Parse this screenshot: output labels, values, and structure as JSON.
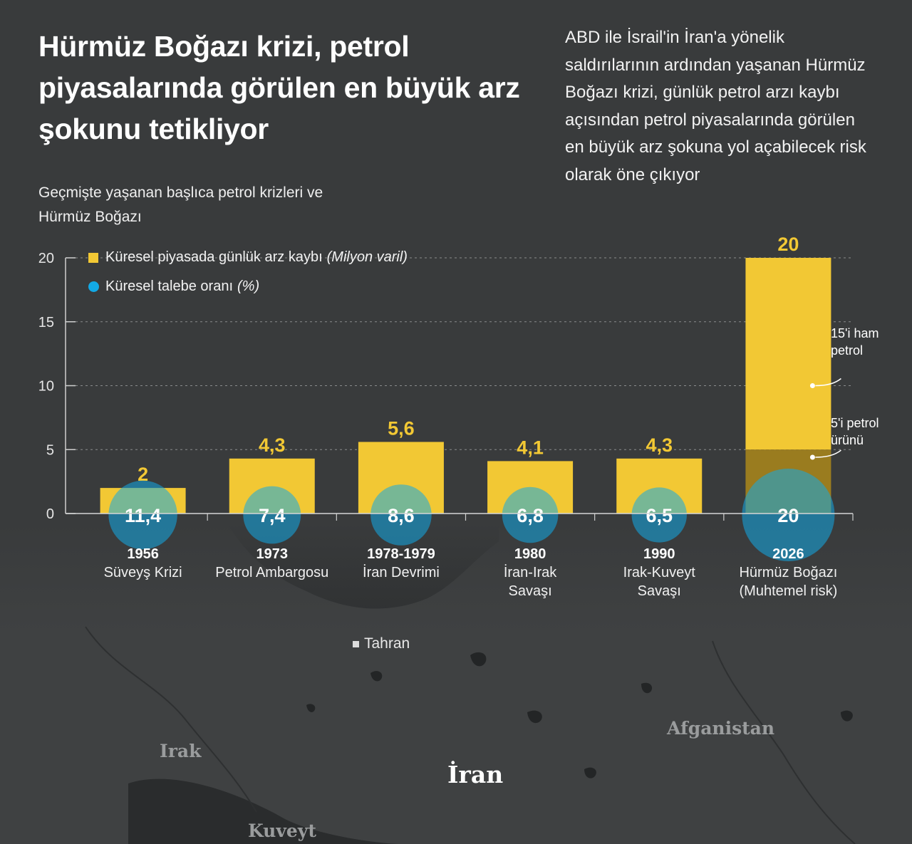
{
  "header": {
    "title": "Hürmüz Boğazı krizi, petrol piyasalarında görülen en büyük arz şokunu tetikliyor",
    "intro": "ABD ile İsrail'in İran'a yönelik saldırılarının ardından yaşanan Hürmüz Boğazı krizi, günlük petrol arzı kaybı açısından petrol piyasalarında görülen en büyük arz şokuna yol açabilecek risk olarak öne çıkıyor",
    "subtitle": "Geçmişte yaşanan başlıca petrol krizleri ve Hürmüz Boğazı"
  },
  "legend": {
    "supply_label": "Küresel piyasada günlük arz kaybı",
    "supply_unit": "(Milyon varil)",
    "demand_label": "Küresel talebe oranı",
    "demand_unit": "(%)"
  },
  "notes": {
    "crude": "15'i ham petrol",
    "products": "5'i petrol ürünü"
  },
  "map_labels": {
    "capital": "Tahran",
    "iraq": "Irak",
    "iran": "İran",
    "afghanistan": "Afganistan",
    "kuwait": "Kuveyt"
  },
  "colors": {
    "background": "#393b3c",
    "bar": "#f2c834",
    "bar_dark": "#9a7c1f",
    "circle": "#12a9e6",
    "value_label": "#f2c834"
  },
  "chart_data": {
    "type": "bar",
    "ylim": [
      0,
      20
    ],
    "yticks": [
      "0",
      "5",
      "10",
      "15",
      "20"
    ],
    "grid": true,
    "legend_position": "top-left",
    "categories": [
      {
        "year": "1956",
        "name": "Süveyş Krizi"
      },
      {
        "year": "1973",
        "name": "Petrol Ambargosu"
      },
      {
        "year": "1978-1979",
        "name": "İran Devrimi"
      },
      {
        "year": "1980",
        "name": "İran-Irak Savaşı"
      },
      {
        "year": "1990",
        "name": "Irak-Kuveyt Savaşı"
      },
      {
        "year": "2026",
        "name": "Hürmüz Boğazı (Muhtemel risk)"
      }
    ],
    "series": [
      {
        "name": "Küresel piyasada günlük arz kaybı (Milyon varil)",
        "values": [
          2,
          4.3,
          5.6,
          4.1,
          4.3,
          20
        ],
        "labels": [
          "2",
          "4,3",
          "5,6",
          "4,1",
          "4,3",
          "20"
        ]
      },
      {
        "name": "Küresel talebe oranı (%)",
        "values": [
          11.4,
          7.4,
          8.6,
          6.8,
          6.5,
          20
        ],
        "labels": [
          "11,4",
          "7,4",
          "8,6",
          "6,8",
          "6,5",
          "20"
        ]
      }
    ],
    "breakdown_2026": [
      {
        "label": "5'i petrol ürünü",
        "value": 5
      },
      {
        "label": "15'i ham petrol",
        "value": 15
      }
    ]
  }
}
